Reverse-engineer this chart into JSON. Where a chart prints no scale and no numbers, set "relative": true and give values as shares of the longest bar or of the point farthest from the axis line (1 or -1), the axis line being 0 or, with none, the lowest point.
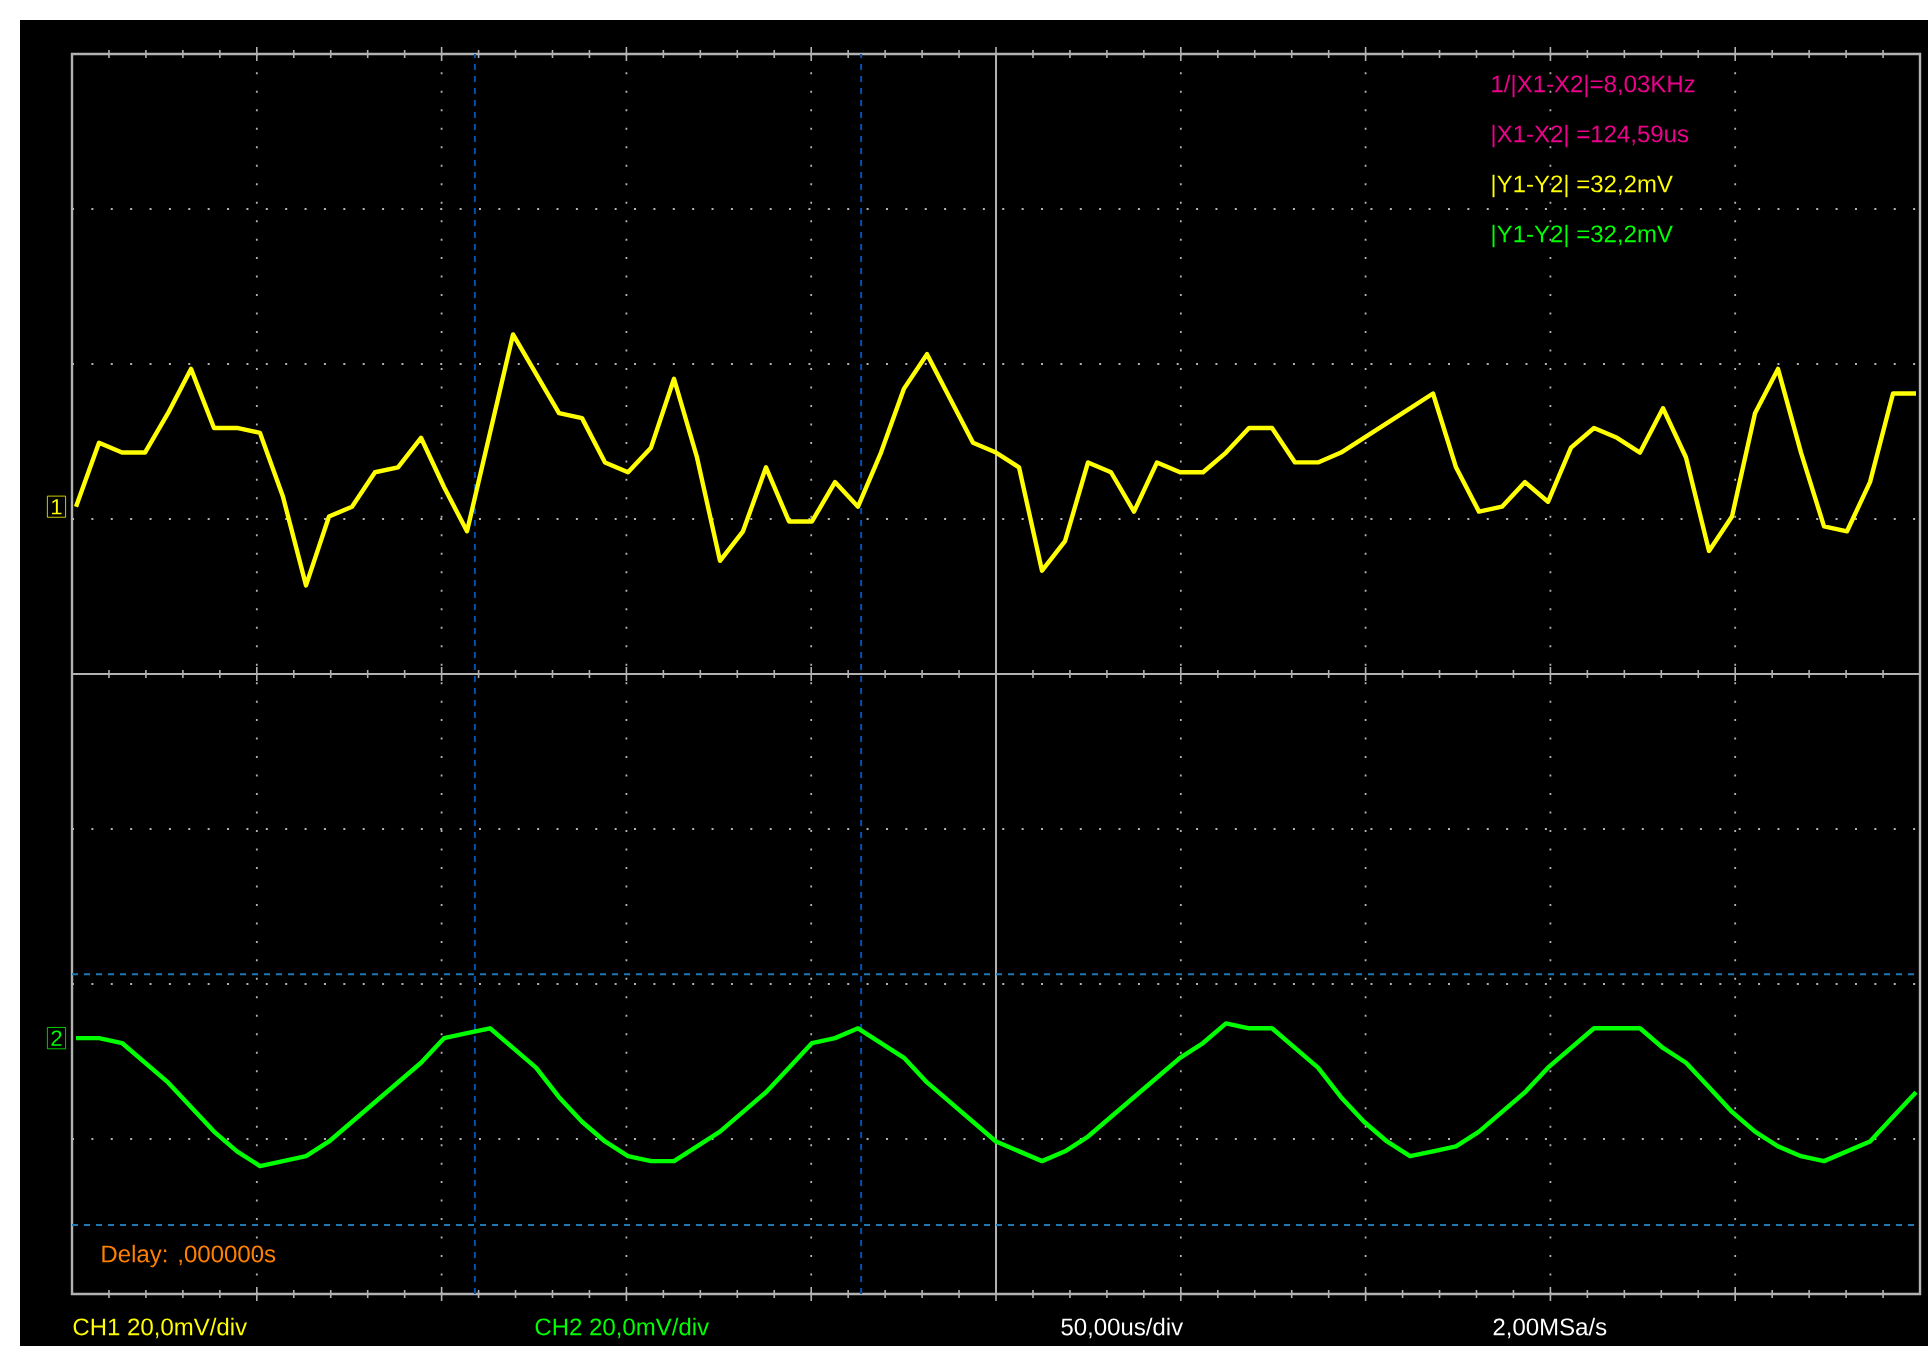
{
  "chart_data": {
    "type": "line",
    "relative": true,
    "grid": true,
    "marker": "none",
    "line_style": "solid",
    "categories": [
      null,
      null,
      null,
      null,
      null,
      null,
      null,
      null,
      null,
      null,
      null,
      null,
      null,
      null,
      null,
      null,
      null,
      null,
      null,
      null,
      null,
      null,
      null,
      null,
      null,
      null,
      null,
      null,
      null,
      null,
      null,
      null,
      null,
      null,
      null,
      null,
      null,
      null,
      null,
      null,
      null,
      null,
      null,
      null,
      null,
      null,
      null,
      null,
      null,
      null,
      null,
      null,
      null,
      null,
      null,
      null,
      null,
      null,
      null,
      null,
      null,
      null,
      null,
      null,
      null,
      null,
      null,
      null,
      null,
      null,
      null,
      null,
      null,
      null,
      null,
      null,
      null,
      null,
      null,
      null,
      null
    ],
    "series": [
      {
        "name": "1",
        "color": "#ffff00",
        "values": [
          0.34,
          0.47,
          0.45,
          0.45,
          0.53,
          0.62,
          0.5,
          0.5,
          0.49,
          0.36,
          0.18,
          0.32,
          0.34,
          0.41,
          0.42,
          0.48,
          0.38,
          0.29,
          0.49,
          0.69,
          0.61,
          0.53,
          0.52,
          0.43,
          0.41,
          0.46,
          0.6,
          0.44,
          0.23,
          0.29,
          0.42,
          0.31,
          0.31,
          0.39,
          0.34,
          0.45,
          0.58,
          0.65,
          0.56,
          0.47,
          0.45,
          0.42,
          0.21,
          0.27,
          0.43,
          0.41,
          0.33,
          0.43,
          0.41,
          0.41,
          0.45,
          0.5,
          0.5,
          0.43,
          0.43,
          0.45,
          0.48,
          0.51,
          0.54,
          0.57,
          0.42,
          0.33,
          0.34,
          0.39,
          0.35,
          0.46,
          0.5,
          0.48,
          0.45,
          0.54,
          0.44,
          0.25,
          0.32,
          0.53,
          0.62,
          0.45,
          0.3,
          0.29,
          0.39,
          0.57,
          0.57
        ]
      },
      {
        "name": "2",
        "color": "#00ff00",
        "values": [
          -0.74,
          -0.74,
          -0.75,
          -0.79,
          -0.83,
          -0.88,
          -0.93,
          -0.97,
          -1.0,
          -0.99,
          -0.98,
          -0.95,
          -0.91,
          -0.87,
          -0.83,
          -0.79,
          -0.74,
          -0.73,
          -0.72,
          -0.76,
          -0.8,
          -0.86,
          -0.91,
          -0.95,
          -0.98,
          -0.99,
          -0.99,
          -0.96,
          -0.93,
          -0.89,
          -0.85,
          -0.8,
          -0.75,
          -0.74,
          -0.72,
          -0.75,
          -0.78,
          -0.83,
          -0.87,
          -0.91,
          -0.95,
          -0.97,
          -0.99,
          -0.97,
          -0.94,
          -0.9,
          -0.86,
          -0.82,
          -0.78,
          -0.75,
          -0.71,
          -0.72,
          -0.72,
          -0.76,
          -0.8,
          -0.86,
          -0.91,
          -0.95,
          -0.98,
          -0.97,
          -0.96,
          -0.93,
          -0.89,
          -0.85,
          -0.8,
          -0.76,
          -0.72,
          -0.72,
          -0.72,
          -0.76,
          -0.79,
          -0.84,
          -0.89,
          -0.93,
          -0.96,
          -0.98,
          -0.99,
          -0.97,
          -0.95,
          -0.9,
          -0.85
        ]
      }
    ],
    "ref_lines": [
      {
        "axis": "y",
        "value": -0.61,
        "color": "#1f78b4",
        "line_style": "dashed"
      },
      {
        "axis": "y",
        "value": -1.12,
        "color": "#1f78b4",
        "line_style": "dashed"
      }
    ],
    "annotations": [
      "1/|X1-X2|=8,03KHz",
      "|X1-X2| =124,59us",
      "|Y1-Y2| =32,2mV",
      "|Y1-Y2| =32,2mV",
      "Delay: ,000000s",
      "CH1 20,0mV/div",
      "CH2 20,0mV/div",
      "50,00us/div",
      "2,00MSa/s"
    ]
  }
}
